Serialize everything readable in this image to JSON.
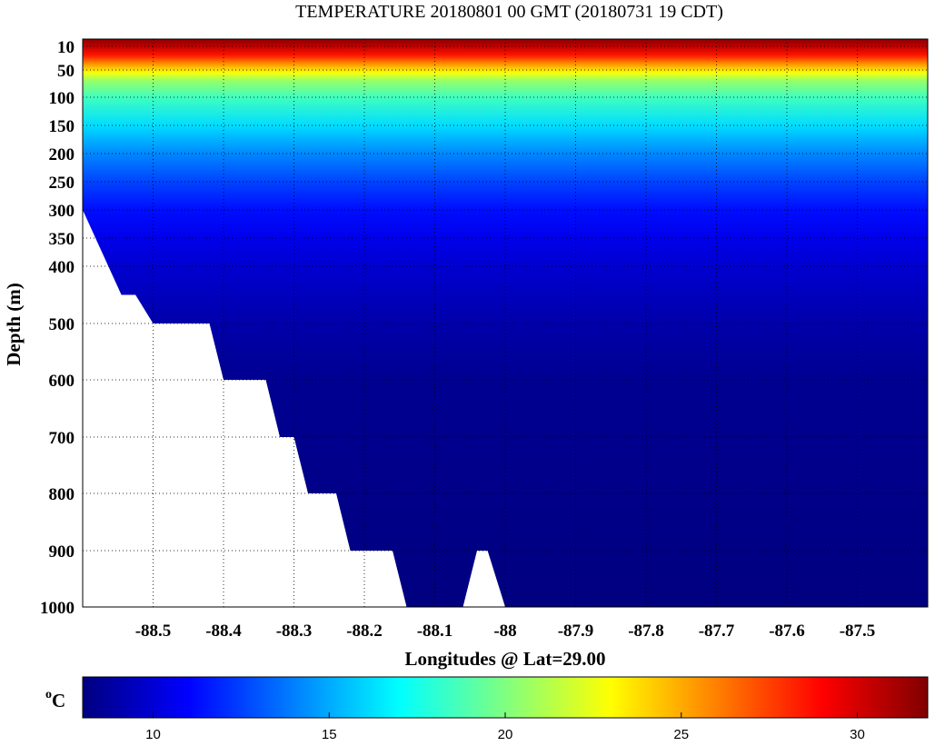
{
  "chart_data": {
    "type": "heatmap",
    "title": "TEMPERATURE 20180801 00 GMT (20180731 19 CDT)",
    "xlabel": "Longitudes @ Lat=29.00",
    "ylabel": "Depth (m)",
    "colorbar_label": "°C",
    "colorbar_unit_super": "o",
    "colorbar_unit_main": "C",
    "colormap": "jet",
    "clim": [
      8,
      32
    ],
    "colorbar_ticks": [
      "10",
      "15",
      "20",
      "25",
      "30"
    ],
    "colorbar_tick_values": [
      10,
      15,
      20,
      25,
      30
    ],
    "xlim": [
      -88.6,
      -87.4
    ],
    "x_ticks": [
      -88.5,
      -88.4,
      -88.3,
      -88.2,
      -88.1,
      -88.0,
      -87.9,
      -87.8,
      -87.7,
      -87.6,
      -87.5
    ],
    "x_tick_labels": [
      "-88.5",
      "-88.4",
      "-88.3",
      "-88.2",
      "-88.1",
      "-88",
      "-87.9",
      "-87.8",
      "-87.7",
      "-87.6",
      "-87.5"
    ],
    "y_ticks": [
      10,
      50,
      100,
      150,
      200,
      250,
      300,
      350,
      400,
      500,
      600,
      700,
      800,
      900,
      1000
    ],
    "y_tick_labels": [
      "10",
      "50",
      "100",
      "150",
      "200",
      "250",
      "300",
      "350",
      "400",
      "500",
      "600",
      "700",
      "800",
      "900",
      "1000"
    ],
    "grid": true,
    "temperature_profile": [
      {
        "depth": 0,
        "temp": 31.5
      },
      {
        "depth": 10,
        "temp": 30.5
      },
      {
        "depth": 25,
        "temp": 28.5
      },
      {
        "depth": 40,
        "temp": 25.5
      },
      {
        "depth": 55,
        "temp": 22.8
      },
      {
        "depth": 70,
        "temp": 20.5
      },
      {
        "depth": 100,
        "temp": 18.5
      },
      {
        "depth": 150,
        "temp": 16.2
      },
      {
        "depth": 200,
        "temp": 14.2
      },
      {
        "depth": 250,
        "temp": 12.6
      },
      {
        "depth": 300,
        "temp": 11.3
      },
      {
        "depth": 350,
        "temp": 10.5
      },
      {
        "depth": 400,
        "temp": 9.9
      },
      {
        "depth": 500,
        "temp": 9.0
      },
      {
        "depth": 600,
        "temp": 8.4
      },
      {
        "depth": 1000,
        "temp": 7.8
      }
    ],
    "bathymetry": [
      {
        "lon": -88.6,
        "depth": 300
      },
      {
        "lon": -88.545,
        "depth": 450
      },
      {
        "lon": -88.525,
        "depth": 450
      },
      {
        "lon": -88.5,
        "depth": 500
      },
      {
        "lon": -88.42,
        "depth": 500
      },
      {
        "lon": -88.4,
        "depth": 600
      },
      {
        "lon": -88.34,
        "depth": 600
      },
      {
        "lon": -88.32,
        "depth": 700
      },
      {
        "lon": -88.3,
        "depth": 700
      },
      {
        "lon": -88.28,
        "depth": 800
      },
      {
        "lon": -88.24,
        "depth": 800
      },
      {
        "lon": -88.22,
        "depth": 900
      },
      {
        "lon": -88.16,
        "depth": 900
      },
      {
        "lon": -88.14,
        "depth": 1000
      },
      {
        "lon": -88.06,
        "depth": 1000
      },
      {
        "lon": -88.04,
        "depth": 900
      },
      {
        "lon": -88.025,
        "depth": 900
      },
      {
        "lon": -88.0,
        "depth": 1000
      }
    ]
  }
}
